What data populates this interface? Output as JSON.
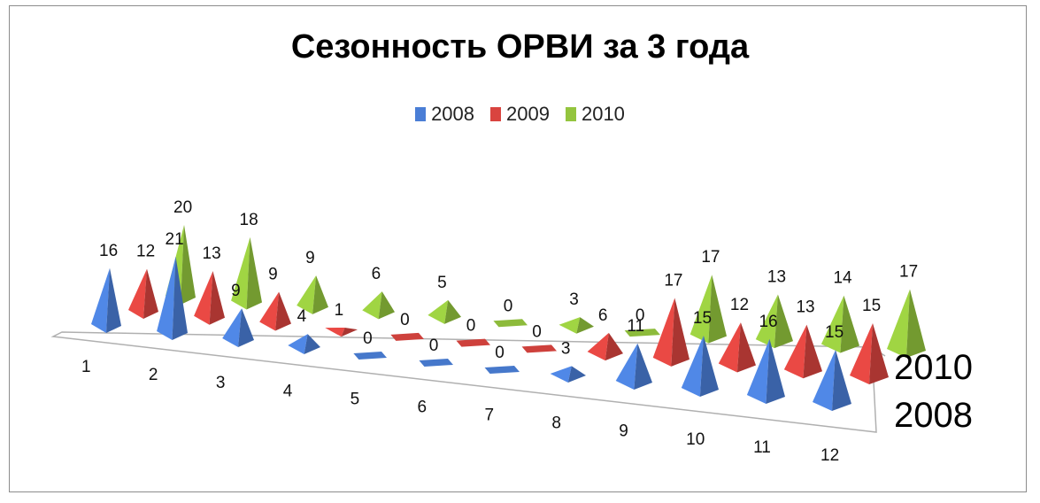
{
  "chart_data": {
    "type": "bar",
    "title": "Сезонность ОРВИ за 3 года",
    "categories": [
      "1",
      "2",
      "3",
      "4",
      "5",
      "6",
      "7",
      "8",
      "9",
      "10",
      "11",
      "12"
    ],
    "series": [
      {
        "name": "2008",
        "color": "#4a7ed6",
        "values": [
          16,
          21,
          9,
          4,
          0,
          0,
          0,
          3,
          11,
          15,
          16,
          15
        ]
      },
      {
        "name": "2009",
        "color": "#d9443f",
        "values": [
          12,
          13,
          9,
          1,
          0,
          0,
          0,
          6,
          17,
          12,
          13,
          15
        ]
      },
      {
        "name": "2010",
        "color": "#94c53e",
        "values": [
          20,
          18,
          9,
          6,
          5,
          0,
          3,
          0,
          17,
          13,
          14,
          17
        ]
      }
    ],
    "depth_labels": [
      "2010",
      "2008"
    ],
    "legend_position": "top",
    "grid": false
  }
}
